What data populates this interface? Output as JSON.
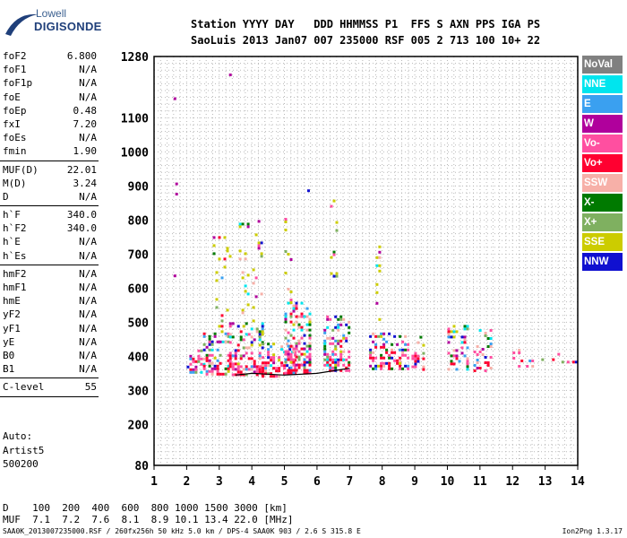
{
  "logo": {
    "top": "Lowell",
    "main": "DIGISONDE"
  },
  "header": {
    "line1": "Station YYYY DAY   DDD HHMMSS P1  FFS S AXN PPS IGA PS",
    "line2": "SaoLuis 2013 Jan07 007 235000 RSF 005 2 713 100 10+ 22"
  },
  "params": {
    "group1": [
      {
        "label": "foF2",
        "value": "6.800"
      },
      {
        "label": "foF1",
        "value": "N/A"
      },
      {
        "label": "foF1p",
        "value": "N/A"
      },
      {
        "label": "foE",
        "value": "N/A"
      },
      {
        "label": "foEp",
        "value": "0.48"
      },
      {
        "label": "fxI",
        "value": "7.20"
      },
      {
        "label": "foEs",
        "value": "N/A"
      },
      {
        "label": "fmin",
        "value": "1.90"
      }
    ],
    "group2": [
      {
        "label": "MUF(D)",
        "value": "22.01"
      },
      {
        "label": "M(D)",
        "value": "3.24"
      },
      {
        "label": "D",
        "value": "N/A"
      }
    ],
    "group3": [
      {
        "label": "h`F",
        "value": "340.0"
      },
      {
        "label": "h`F2",
        "value": "340.0"
      },
      {
        "label": "h`E",
        "value": "N/A"
      },
      {
        "label": "h`Es",
        "value": "N/A"
      }
    ],
    "group4": [
      {
        "label": "hmF2",
        "value": "N/A"
      },
      {
        "label": "hmF1",
        "value": "N/A"
      },
      {
        "label": "hmE",
        "value": "N/A"
      },
      {
        "label": "yF2",
        "value": "N/A"
      },
      {
        "label": "yF1",
        "value": "N/A"
      },
      {
        "label": "yE",
        "value": "N/A"
      },
      {
        "label": "B0",
        "value": "N/A"
      },
      {
        "label": "B1",
        "value": "N/A"
      }
    ],
    "group5": [
      {
        "label": "C-level",
        "value": "55"
      }
    ]
  },
  "autoscale": {
    "line1": "Auto:",
    "line2": "Artist5",
    "line3": "500200"
  },
  "legend": [
    {
      "label": "NoVal",
      "color": "#808080"
    },
    {
      "label": "NNE",
      "color": "#00e5ee"
    },
    {
      "label": "E",
      "color": "#3aa0f0"
    },
    {
      "label": "W",
      "color": "#b0009c"
    },
    {
      "label": "Vo-",
      "color": "#ff4fa0"
    },
    {
      "label": "Vo+",
      "color": "#ff0030"
    },
    {
      "label": "SSW",
      "color": "#f7b0a8"
    },
    {
      "label": "X-",
      "color": "#007a00"
    },
    {
      "label": "X+",
      "color": "#7fb060"
    },
    {
      "label": "SSE",
      "color": "#cccc00"
    },
    {
      "label": "NNW",
      "color": "#1010d0"
    }
  ],
  "dmuf": {
    "line1": "D    100  200  400  600  800 1000 1500 3000 [km]",
    "line2": "MUF  7.1  7.2  7.6  8.1  8.9 10.1 13.4 22.0 [MHz]"
  },
  "footer": "SAA0K_2013007235000.RSF / 260fx256h 50 kHz 5.0 km / DPS-4 SAA0K 903 / 2.6 S 315.8 E",
  "version": "Ion2Png 1.3.17",
  "chart_data": {
    "type": "scatter",
    "title": "",
    "xlabel": "",
    "ylabel": "",
    "xlim": [
      1,
      14
    ],
    "ylim": [
      80,
      1280
    ],
    "xticks": [
      1,
      2,
      3,
      4,
      5,
      6,
      7,
      8,
      9,
      10,
      11,
      12,
      13,
      14
    ],
    "yticks": [
      80,
      200,
      300,
      400,
      500,
      600,
      700,
      800,
      900,
      1000,
      1100,
      1280
    ],
    "ytick_labels": [
      "80",
      "200",
      "300",
      "400",
      "500",
      "600",
      "700",
      "800",
      "900",
      "1000",
      "1100",
      "1280"
    ],
    "grid": true,
    "legend_position": "right",
    "clusters": [
      {
        "x": [
          2.0,
          2.5
        ],
        "y": [
          355,
          420
        ],
        "density": "high"
      },
      {
        "x": [
          2.5,
          3.3
        ],
        "y": [
          350,
          470
        ],
        "density": "high"
      },
      {
        "x": [
          3.3,
          4.3
        ],
        "y": [
          345,
          500
        ],
        "density": "high"
      },
      {
        "x": [
          4.3,
          5.3
        ],
        "y": [
          345,
          440
        ],
        "density": "high"
      },
      {
        "x": [
          5.0,
          5.8
        ],
        "y": [
          350,
          560
        ],
        "density": "high"
      },
      {
        "x": [
          6.2,
          7.0
        ],
        "y": [
          355,
          520
        ],
        "density": "high"
      },
      {
        "x": [
          7.6,
          8.8
        ],
        "y": [
          360,
          470
        ],
        "density": "high"
      },
      {
        "x": [
          8.9,
          9.3
        ],
        "y": [
          360,
          460
        ],
        "density": "medium"
      },
      {
        "x": [
          10.0,
          10.6
        ],
        "y": [
          360,
          500
        ],
        "density": "medium"
      },
      {
        "x": [
          10.8,
          11.3
        ],
        "y": [
          360,
          480
        ],
        "density": "medium"
      },
      {
        "x": [
          12.0,
          12.7
        ],
        "y": [
          370,
          430
        ],
        "density": "low"
      },
      {
        "x": [
          12.8,
          13.4
        ],
        "y": [
          380,
          410
        ],
        "density": "low"
      },
      {
        "x": [
          13.5,
          14.0
        ],
        "y": [
          380,
          395
        ],
        "density": "low"
      }
    ],
    "scatter_columns": [
      {
        "x": [
          2.8,
          3.3
        ],
        "y": [
          470,
          800
        ]
      },
      {
        "x": [
          3.6,
          4.3
        ],
        "y": [
          500,
          800
        ]
      },
      {
        "x": [
          5.0,
          5.2
        ],
        "y": [
          560,
          830
        ]
      },
      {
        "x": [
          6.4,
          6.6
        ],
        "y": [
          520,
          860
        ]
      },
      {
        "x": [
          7.8,
          7.9
        ],
        "y": [
          470,
          820
        ]
      }
    ],
    "isolated_points": [
      {
        "x": 1.6,
        "y": 1160
      },
      {
        "x": 1.65,
        "y": 910
      },
      {
        "x": 1.65,
        "y": 880
      },
      {
        "x": 1.6,
        "y": 640
      },
      {
        "x": 3.3,
        "y": 1230
      },
      {
        "x": 5.7,
        "y": 890
      }
    ],
    "trace_line": {
      "x": [
        3.5,
        4.0,
        5.0,
        6.0,
        7.0
      ],
      "y": [
        345,
        350,
        345,
        350,
        365
      ]
    }
  }
}
